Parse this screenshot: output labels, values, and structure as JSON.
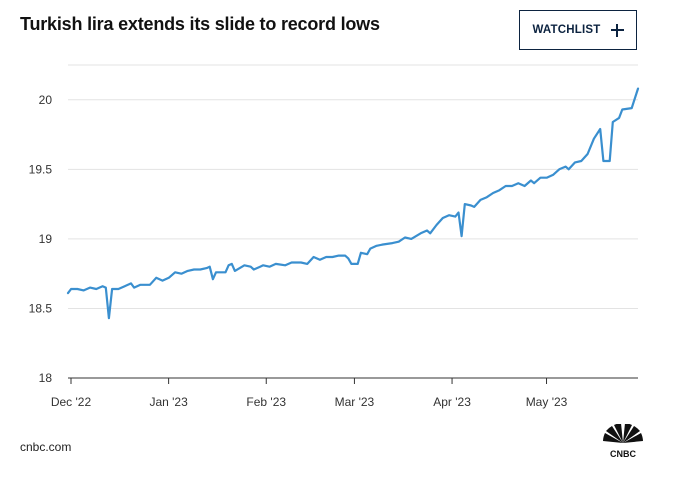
{
  "header": {
    "title": "Turkish lira extends its slide to record lows",
    "watchlist_label": "WATCHLIST",
    "watchlist_icon": "plus-icon"
  },
  "footer": {
    "source": "cnbc.com",
    "logo": "CNBC"
  },
  "colors": {
    "line": "#3a8fcf",
    "grid": "#e3e3e3",
    "axis_text": "#333333",
    "brand": "#0c2340"
  },
  "chart_data": {
    "type": "line",
    "title": "Turkish lira extends its slide to record lows",
    "xlabel": "",
    "ylabel": "",
    "grid": "horizontal",
    "legend": "none",
    "ylim": [
      18,
      20.25
    ],
    "xlim": [
      "2022-12-01",
      "2023-05-31"
    ],
    "y_ticks": [
      18,
      18.5,
      19,
      19.5,
      20
    ],
    "y_tick_labels": [
      "18",
      "18.5",
      "19",
      "19.5",
      "20"
    ],
    "x_ticks": [
      {
        "label": "Dec '22",
        "date": "2022-12-01"
      },
      {
        "label": "Jan '23",
        "date": "2023-01-01"
      },
      {
        "label": "Feb '23",
        "date": "2023-02-01"
      },
      {
        "label": "Mar '23",
        "date": "2023-03-01"
      },
      {
        "label": "Apr '23",
        "date": "2023-04-01"
      },
      {
        "label": "May '23",
        "date": "2023-05-01"
      }
    ],
    "series": [
      {
        "points": [
          [
            "2022-12-01",
            18.61
          ],
          [
            "2022-12-02",
            18.64
          ],
          [
            "2022-12-04",
            18.64
          ],
          [
            "2022-12-06",
            18.63
          ],
          [
            "2022-12-08",
            18.65
          ],
          [
            "2022-12-10",
            18.64
          ],
          [
            "2022-12-12",
            18.66
          ],
          [
            "2022-12-13",
            18.65
          ],
          [
            "2022-12-14",
            18.43
          ],
          [
            "2022-12-15",
            18.64
          ],
          [
            "2022-12-17",
            18.64
          ],
          [
            "2022-12-19",
            18.66
          ],
          [
            "2022-12-21",
            18.68
          ],
          [
            "2022-12-22",
            18.65
          ],
          [
            "2022-12-24",
            18.67
          ],
          [
            "2022-12-27",
            18.67
          ],
          [
            "2022-12-29",
            18.72
          ],
          [
            "2022-12-31",
            18.7
          ],
          [
            "2023-01-02",
            18.72
          ],
          [
            "2023-01-04",
            18.76
          ],
          [
            "2023-01-06",
            18.75
          ],
          [
            "2023-01-08",
            18.77
          ],
          [
            "2023-01-10",
            18.78
          ],
          [
            "2023-01-12",
            18.78
          ],
          [
            "2023-01-14",
            18.79
          ],
          [
            "2023-01-15",
            18.8
          ],
          [
            "2023-01-16",
            18.71
          ],
          [
            "2023-01-17",
            18.76
          ],
          [
            "2023-01-20",
            18.76
          ],
          [
            "2023-01-21",
            18.81
          ],
          [
            "2023-01-22",
            18.82
          ],
          [
            "2023-01-23",
            18.77
          ],
          [
            "2023-01-26",
            18.81
          ],
          [
            "2023-01-28",
            18.8
          ],
          [
            "2023-01-29",
            18.78
          ],
          [
            "2023-01-31",
            18.8
          ],
          [
            "2023-02-01",
            18.81
          ],
          [
            "2023-02-03",
            18.8
          ],
          [
            "2023-02-05",
            18.82
          ],
          [
            "2023-02-08",
            18.81
          ],
          [
            "2023-02-10",
            18.83
          ],
          [
            "2023-02-13",
            18.83
          ],
          [
            "2023-02-15",
            18.82
          ],
          [
            "2023-02-17",
            18.87
          ],
          [
            "2023-02-19",
            18.85
          ],
          [
            "2023-02-21",
            18.87
          ],
          [
            "2023-02-23",
            18.87
          ],
          [
            "2023-02-25",
            18.88
          ],
          [
            "2023-02-27",
            18.88
          ],
          [
            "2023-02-28",
            18.86
          ],
          [
            "2023-03-01",
            18.82
          ],
          [
            "2023-03-03",
            18.82
          ],
          [
            "2023-03-04",
            18.9
          ],
          [
            "2023-03-06",
            18.89
          ],
          [
            "2023-03-07",
            18.93
          ],
          [
            "2023-03-09",
            18.95
          ],
          [
            "2023-03-11",
            18.96
          ],
          [
            "2023-03-14",
            18.97
          ],
          [
            "2023-03-16",
            18.98
          ],
          [
            "2023-03-18",
            19.01
          ],
          [
            "2023-03-20",
            19.0
          ],
          [
            "2023-03-23",
            19.04
          ],
          [
            "2023-03-25",
            19.06
          ],
          [
            "2023-03-26",
            19.04
          ],
          [
            "2023-03-28",
            19.1
          ],
          [
            "2023-03-30",
            19.15
          ],
          [
            "2023-04-01",
            19.17
          ],
          [
            "2023-04-03",
            19.16
          ],
          [
            "2023-04-04",
            19.19
          ],
          [
            "2023-04-05",
            19.02
          ],
          [
            "2023-04-06",
            19.25
          ],
          [
            "2023-04-08",
            19.24
          ],
          [
            "2023-04-09",
            19.23
          ],
          [
            "2023-04-11",
            19.28
          ],
          [
            "2023-04-13",
            19.3
          ],
          [
            "2023-04-15",
            19.33
          ],
          [
            "2023-04-17",
            19.35
          ],
          [
            "2023-04-19",
            19.38
          ],
          [
            "2023-04-21",
            19.38
          ],
          [
            "2023-04-23",
            19.4
          ],
          [
            "2023-04-25",
            19.38
          ],
          [
            "2023-04-27",
            19.42
          ],
          [
            "2023-04-28",
            19.4
          ],
          [
            "2023-04-30",
            19.44
          ],
          [
            "2023-05-02",
            19.44
          ],
          [
            "2023-05-04",
            19.46
          ],
          [
            "2023-05-06",
            19.5
          ],
          [
            "2023-05-08",
            19.52
          ],
          [
            "2023-05-09",
            19.5
          ],
          [
            "2023-05-11",
            19.55
          ],
          [
            "2023-05-13",
            19.56
          ],
          [
            "2023-05-15",
            19.61
          ],
          [
            "2023-05-17",
            19.72
          ],
          [
            "2023-05-19",
            19.79
          ],
          [
            "2023-05-20",
            19.56
          ],
          [
            "2023-05-22",
            19.56
          ],
          [
            "2023-05-23",
            19.84
          ],
          [
            "2023-05-25",
            19.87
          ],
          [
            "2023-05-26",
            19.93
          ],
          [
            "2023-05-29",
            19.94
          ],
          [
            "2023-05-31",
            20.08
          ]
        ]
      }
    ]
  }
}
